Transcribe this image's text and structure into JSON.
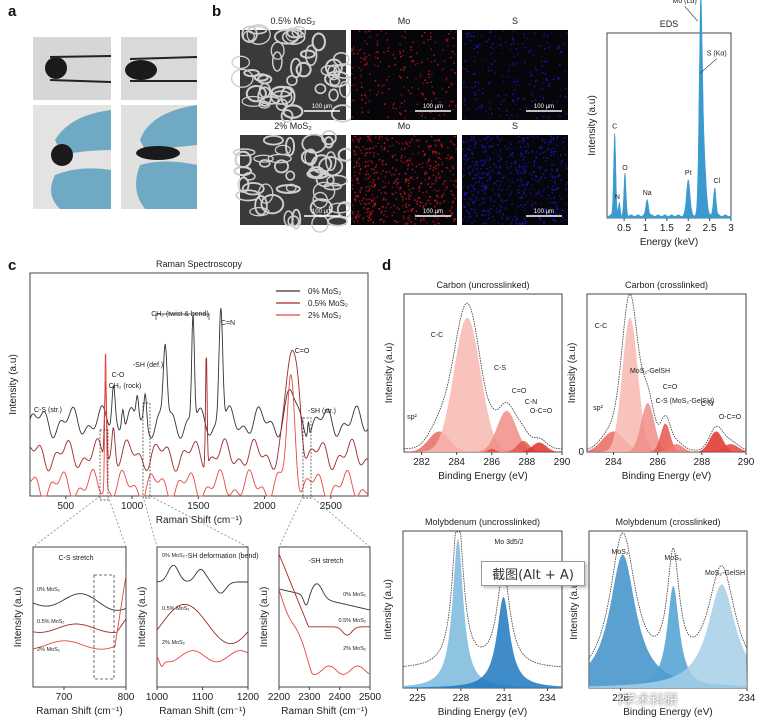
{
  "figure": {
    "panel_labels": [
      "a",
      "b",
      "c",
      "d"
    ],
    "tooltip": "截图(Alt + A)",
    "watermark": "i学术科研"
  },
  "panel_a": {
    "photos": [
      {
        "name": "sample-tweezers-round",
        "desc": "black sponge held by tweezers (round)"
      },
      {
        "name": "sample-tweezers-compressed",
        "desc": "black sponge held by tweezers (compressed)"
      },
      {
        "name": "sample-gloved-round",
        "desc": "black sponge held by gloved fingers"
      },
      {
        "name": "sample-gloved-compressed",
        "desc": "compressed sponge held by gloved fingers"
      }
    ]
  },
  "panel_b": {
    "rows": [
      {
        "label": "0.5% MoS₂",
        "maps": [
          "SEM",
          "Mo",
          "S"
        ],
        "scale": "100 µm",
        "density": 0.3
      },
      {
        "label": "2% MoS₂",
        "maps": [
          "SEM",
          "Mo",
          "S"
        ],
        "scale": "100 µm",
        "density": 0.75
      }
    ],
    "map_titles": [
      "Mo",
      "S"
    ],
    "colors": {
      "Mo": "#d21818",
      "S": "#1a1ad0"
    }
  },
  "chart_data": [
    {
      "id": "eds",
      "type": "area",
      "title": "EDS",
      "xlabel": "Energy (keV)",
      "ylabel": "Intensity (a.u)",
      "xlim": [
        0.1,
        3.0
      ],
      "xticks": [
        0.5,
        1.0,
        1.5,
        2.0,
        2.5,
        3.0
      ],
      "color": "#3a9ad0",
      "peaks": [
        {
          "x": 0.28,
          "h": 0.5,
          "w": 0.025,
          "label": "C"
        },
        {
          "x": 0.39,
          "h": 0.08,
          "w": 0.02,
          "label": "N"
        },
        {
          "x": 0.52,
          "h": 0.25,
          "w": 0.025,
          "label": "O"
        },
        {
          "x": 1.04,
          "h": 0.1,
          "w": 0.03,
          "label": "Na"
        },
        {
          "x": 2.0,
          "h": 0.22,
          "w": 0.04,
          "label": "Pt"
        },
        {
          "x": 2.29,
          "h": 1.0,
          "w": 0.035,
          "label": "Mo (Lα)"
        },
        {
          "x": 2.34,
          "h": 0.45,
          "w": 0.06,
          "label": "S (Kα)"
        },
        {
          "x": 2.62,
          "h": 0.17,
          "w": 0.03,
          "label": "Cl"
        }
      ]
    },
    {
      "id": "raman",
      "type": "line",
      "title": "Raman Spectroscopy",
      "xlabel": "Raman Shift (cm⁻¹)",
      "ylabel": "Intensity (a.u)",
      "xlim": [
        230,
        2780
      ],
      "xticks": [
        500,
        1000,
        1500,
        2000,
        2500
      ],
      "series": [
        {
          "name": "0% MoS₂",
          "color": "#333333"
        },
        {
          "name": "0.5% MoS₂",
          "color": "#a02828"
        },
        {
          "name": "2% MoS₂",
          "color": "#e8483e"
        }
      ],
      "annotations": [
        "C-S (str.)",
        "C-O",
        "CH₂ (rock)",
        "-SH (def.)",
        "CH₂ (twist & bend)",
        "C=N",
        "C=O",
        "-SH (str.)"
      ]
    },
    {
      "id": "raman-zoom-cs",
      "type": "line",
      "xlabel": "Raman Shift (cm⁻¹)",
      "ylabel": "Intensity (a.u)",
      "xlim": [
        650,
        800
      ],
      "xticks": [
        700,
        800
      ],
      "annotation": "C-S stretch",
      "series_labels": [
        "0% MoS₂",
        "0.5% MoS₂",
        "2% MoS₂"
      ]
    },
    {
      "id": "raman-zoom-shdef",
      "type": "line",
      "xlabel": "Raman Shift (cm⁻¹)",
      "ylabel": "Intensity (a.u)",
      "xlim": [
        1000,
        1200
      ],
      "xticks": [
        1000,
        1100,
        1200
      ],
      "annotation": "-SH deformation (bend)",
      "series_labels": [
        "0% MoS₂",
        "0.5% MoS₂",
        "2% MoS₂"
      ]
    },
    {
      "id": "raman-zoom-shstr",
      "type": "line",
      "xlabel": "Raman Shift (cm⁻¹)",
      "ylabel": "Intensity (a.u)",
      "xlim": [
        2200,
        2500
      ],
      "xticks": [
        2200,
        2300,
        2400,
        2500
      ],
      "annotation": "-SH stretch",
      "series_labels": [
        "0% MoS₂",
        "0.5% MoS₂",
        "2% MoS₂"
      ]
    },
    {
      "id": "xps-c-uncross",
      "type": "area",
      "title": "Carbon (uncrosslinked)",
      "xlabel": "Binding Energy (eV)",
      "ylabel": "Intensity (a.u)",
      "xlim": [
        281,
        290
      ],
      "xticks": [
        282,
        284,
        286,
        288,
        290
      ],
      "peaks": [
        {
          "x": 283.0,
          "h": 0.13,
          "w": 0.6,
          "label": "sp²",
          "color": "#e86a62"
        },
        {
          "x": 284.6,
          "h": 0.85,
          "w": 0.75,
          "label": "C-C",
          "color": "#f7b8b2"
        },
        {
          "x": 286.85,
          "h": 0.26,
          "w": 0.55,
          "label": "C-S",
          "color": "#ef8e86"
        },
        {
          "x": 286.0,
          "h": 0.02,
          "w": 0.2,
          "label": "C=O",
          "color": "#e0453b"
        },
        {
          "x": 287.8,
          "h": 0.07,
          "w": 0.35,
          "label": "C-N",
          "color": "#e6564c"
        },
        {
          "x": 288.7,
          "h": 0.06,
          "w": 0.4,
          "label": "O-C=O",
          "color": "#e0302a"
        }
      ]
    },
    {
      "id": "xps-c-cross",
      "type": "area",
      "title": "Carbon (crosslinked)",
      "xlabel": "Binding Energy (eV)",
      "ylabel": "Intensity (a.u)",
      "xlim": [
        282.8,
        290
      ],
      "xticks": [
        284,
        286,
        288,
        290
      ],
      "yticks": [
        0
      ],
      "peaks": [
        {
          "x": 284.0,
          "h": 0.13,
          "w": 0.5,
          "label": "sp²",
          "color": "#e86a62"
        },
        {
          "x": 284.75,
          "h": 0.85,
          "w": 0.35,
          "label": "C-C",
          "color": "#f7b8b2"
        },
        {
          "x": 285.55,
          "h": 0.31,
          "w": 0.3,
          "label": "MoS₂-GelSH",
          "color": "#ef8e86"
        },
        {
          "x": 286.35,
          "h": 0.18,
          "w": 0.22,
          "label": "C=O",
          "color": "#e6564c"
        },
        {
          "x": 286.85,
          "h": 0.05,
          "w": 0.3,
          "label": "C-S (MoS₂-GelSH)",
          "color": "#ec7a72"
        },
        {
          "x": 288.65,
          "h": 0.13,
          "w": 0.3,
          "label": "C-N",
          "color": "#e0302a"
        },
        {
          "x": 289.3,
          "h": 0.05,
          "w": 0.35,
          "label": "O-C=O",
          "color": "#e0453b"
        }
      ]
    },
    {
      "id": "xps-mo-uncross",
      "type": "area",
      "title": "Molybdenum (uncrosslinked)",
      "xlabel": "Binding Energy (eV)",
      "ylabel": "Intensity (a.u)",
      "xlim": [
        224,
        235
      ],
      "xticks": [
        225,
        228,
        231,
        234
      ],
      "peaks": [
        {
          "x": 227.8,
          "h": 0.95,
          "w": 0.45,
          "label": "Mo 3d5/2",
          "color": "#7ab8dd"
        },
        {
          "x": 230.95,
          "h": 0.58,
          "w": 0.55,
          "label": "",
          "color": "#1f78be"
        }
      ]
    },
    {
      "id": "xps-mo-cross",
      "type": "area",
      "title": "Molybdenum (crosslinked)",
      "xlabel": "Binding Energy (eV)",
      "ylabel": "Intensity (a.u)",
      "xlim": [
        226.5,
        234
      ],
      "xticks": [
        228,
        234
      ],
      "peaks": [
        {
          "x": 228.1,
          "h": 0.85,
          "w": 0.75,
          "label": "MoS₂",
          "color": "#3d8fc8"
        },
        {
          "x": 230.5,
          "h": 0.65,
          "w": 0.35,
          "label": "MoS₃",
          "color": "#4f9fd2"
        },
        {
          "x": 232.8,
          "h": 0.66,
          "w": 0.8,
          "label": "MoS₂-GelSH",
          "color": "#a6cfe8"
        }
      ]
    }
  ]
}
